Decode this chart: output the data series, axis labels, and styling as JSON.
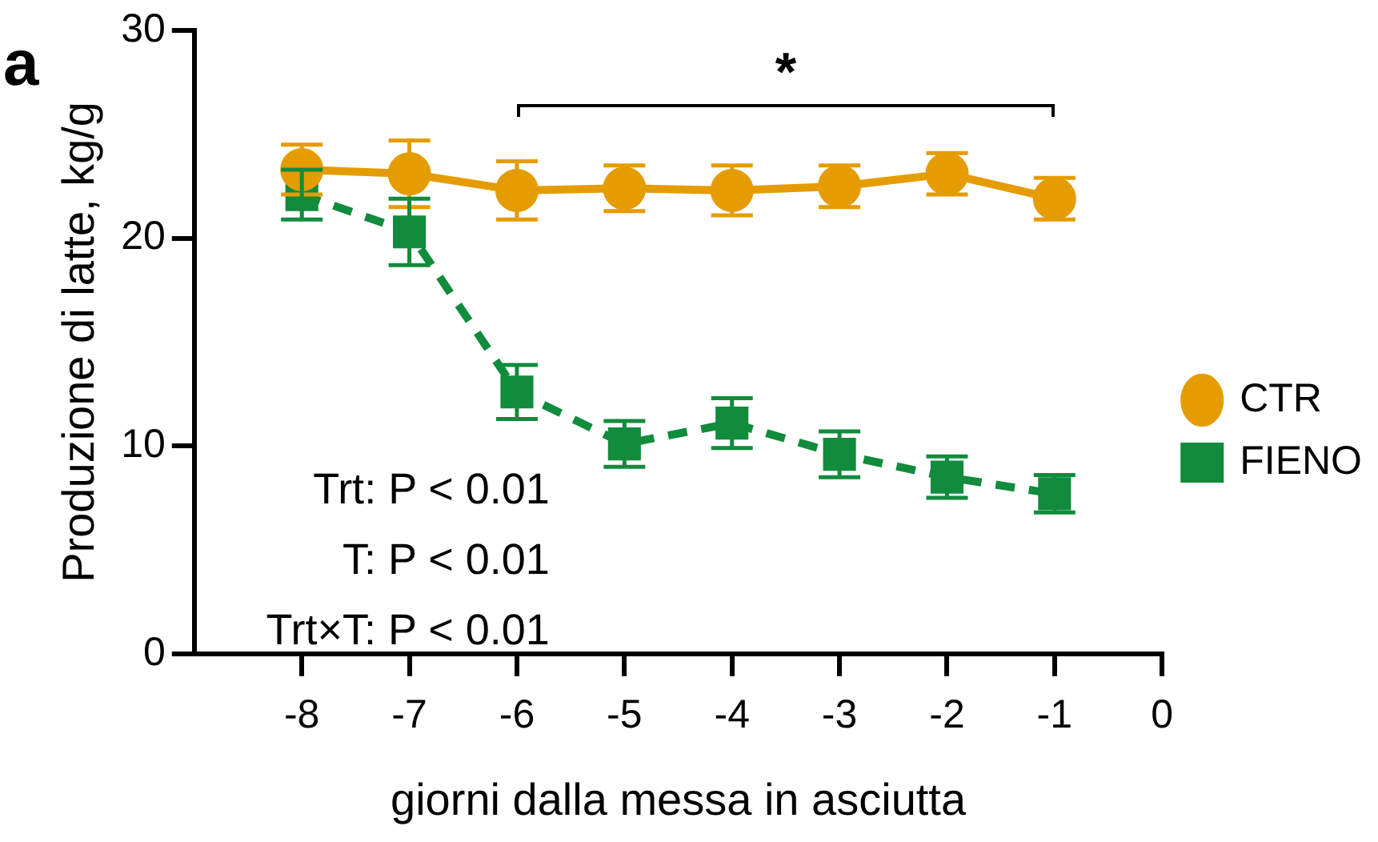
{
  "chart_data": {
    "type": "line",
    "xlabel": "giorni dalla messa in asciutta",
    "ylabel": "Produzione di latte, kg/g",
    "x": [
      -8,
      -7,
      -6,
      -5,
      -4,
      -3,
      -2,
      -1
    ],
    "series": [
      {
        "name": "CTR",
        "color": "#e59c00",
        "marker": "circle",
        "line_style": "solid",
        "values": [
          23.3,
          23.1,
          22.3,
          22.4,
          22.3,
          22.5,
          23.1,
          21.9
        ],
        "errors": [
          1.2,
          1.6,
          1.4,
          1.1,
          1.2,
          1.0,
          1.0,
          1.0
        ]
      },
      {
        "name": "FIENO",
        "color": "#118b3c",
        "marker": "square",
        "line_style": "dashed",
        "values": [
          22.1,
          20.3,
          12.6,
          10.1,
          11.1,
          9.6,
          8.5,
          7.7
        ],
        "errors": [
          1.2,
          1.6,
          1.3,
          1.1,
          1.2,
          1.1,
          1.0,
          0.9
        ]
      }
    ],
    "xlim": [
      -9,
      0
    ],
    "xticks": [
      -8,
      -7,
      -6,
      -5,
      -4,
      -3,
      -2,
      -1,
      0
    ],
    "ylim": [
      0,
      30
    ],
    "yticks": [
      0,
      10,
      20,
      30
    ],
    "grid": false,
    "legend": "right",
    "annotations": [
      "a",
      "*",
      "Trt: P < 0.01",
      "T: P < 0.01",
      "Trt×T: P < 0.01"
    ]
  }
}
